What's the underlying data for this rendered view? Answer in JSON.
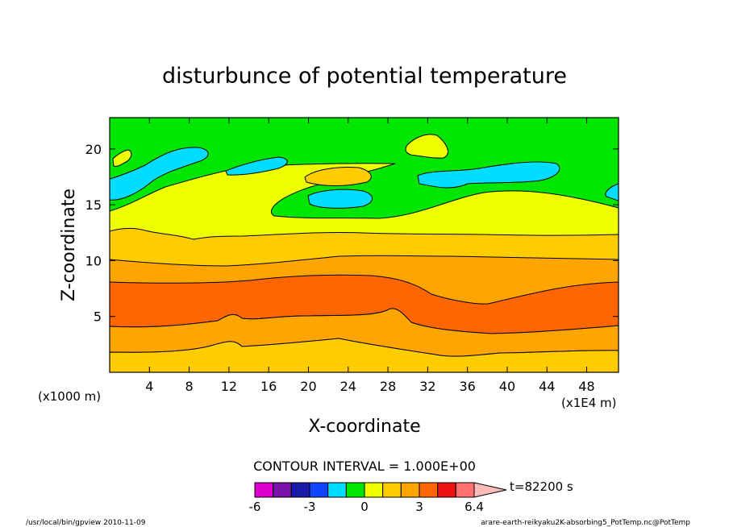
{
  "chart_data": {
    "type": "contour",
    "title": "disturbunce of potential temperature",
    "xlabel": "X-coordinate",
    "ylabel": "Z-coordinate",
    "x_unit_label": "(x1E4 m)",
    "y_unit_label": "(x1000 m)",
    "xlim": [
      0,
      51.2
    ],
    "ylim": [
      0,
      22.8
    ],
    "xticks": [
      4,
      8,
      12,
      16,
      20,
      24,
      28,
      32,
      36,
      40,
      44,
      48
    ],
    "xtick_labels": [
      "4",
      "8",
      "12",
      "16",
      "20",
      "24",
      "28",
      "32",
      "36",
      "40",
      "44",
      "48"
    ],
    "yticks": [
      5,
      10,
      15,
      20
    ],
    "ytick_labels": [
      "5",
      "10",
      "15",
      "20"
    ],
    "contour_interval_text": "CONTOUR INTERVAL = 1.000E+00",
    "colorbar": {
      "levels": [
        -6,
        -5,
        -4,
        -3,
        -2,
        -1,
        0,
        1,
        2,
        3,
        4,
        5,
        6.4
      ],
      "tick_values": [
        -6,
        -3,
        0,
        3,
        6.4
      ],
      "tick_labels": [
        "-6",
        "-3",
        "0",
        "3",
        "6.4"
      ],
      "colors": [
        "#dd00cc",
        "#7711aa",
        "#1a1aa8",
        "#1144ff",
        "#00ddff",
        "#00e600",
        "#eeff00",
        "#ffcc00",
        "#ffa500",
        "#ff6600",
        "#ee1111",
        "#ff7070",
        "#ffbbbb"
      ]
    },
    "time_label": "t=82200 s",
    "bands": [
      {
        "name": "band-1-to-2-lower",
        "color": "#ffcc00",
        "level_low": 1,
        "level_high": 2
      },
      {
        "name": "band-2-to-3-lower",
        "color": "#ffa500",
        "level_low": 2,
        "level_high": 3
      },
      {
        "name": "band-3-to-4-core",
        "color": "#ff6600",
        "level_low": 3,
        "level_high": 4
      },
      {
        "name": "band-2-to-3-upper",
        "color": "#ffa500",
        "level_low": 2,
        "level_high": 3
      },
      {
        "name": "band-1-to-2-upper",
        "color": "#ffcc00",
        "level_low": 1,
        "level_high": 2
      },
      {
        "name": "band-0-to-1",
        "color": "#eeff00",
        "level_low": 0,
        "level_high": 1
      },
      {
        "name": "band-minus1-to-0",
        "color": "#00e600",
        "level_low": -1,
        "level_high": 0
      }
    ]
  },
  "footer": {
    "left": "/usr/local/bin/gpview   2010-11-09",
    "right": "arare-earth-reikyaku2K-absorbing5_PotTemp.nc@PotTemp"
  }
}
